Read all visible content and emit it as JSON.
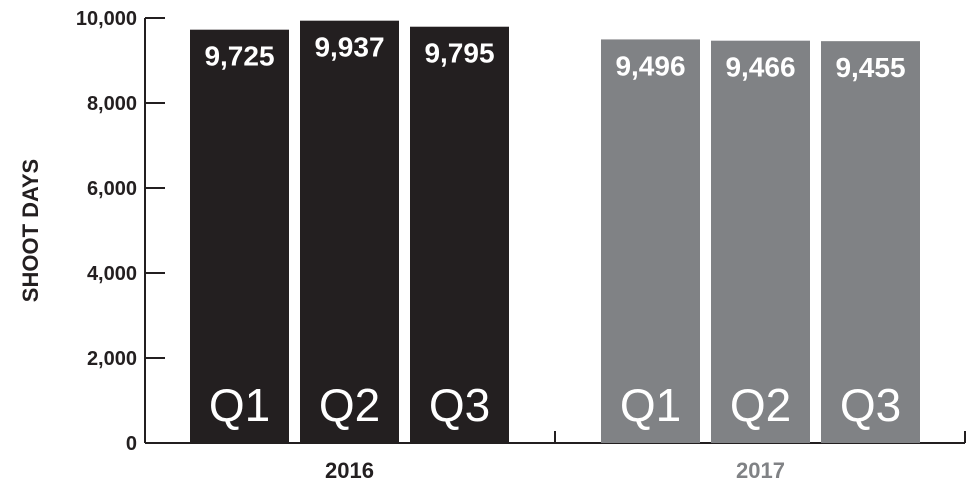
{
  "chart_data": {
    "type": "bar",
    "ylabel": "SHOOT DAYS",
    "ylim": [
      0,
      10000
    ],
    "yticks": [
      "0",
      "2,000",
      "4,000",
      "6,000",
      "8,000",
      "10,000"
    ],
    "ytick_values": [
      0,
      2000,
      4000,
      6000,
      8000,
      10000
    ],
    "grid": false,
    "groups": [
      {
        "label": "2016",
        "label_color": "#231f20",
        "bar_color": "#231f20",
        "bars": [
          {
            "category": "Q1",
            "value": 9725,
            "value_label": "9,725"
          },
          {
            "category": "Q2",
            "value": 9937,
            "value_label": "9,937"
          },
          {
            "category": "Q3",
            "value": 9795,
            "value_label": "9,795"
          }
        ]
      },
      {
        "label": "2017",
        "label_color": "#808285",
        "bar_color": "#808285",
        "bars": [
          {
            "category": "Q1",
            "value": 9496,
            "value_label": "9,496"
          },
          {
            "category": "Q2",
            "value": 9466,
            "value_label": "9,466"
          },
          {
            "category": "Q3",
            "value": 9455,
            "value_label": "9,455"
          }
        ]
      }
    ]
  }
}
